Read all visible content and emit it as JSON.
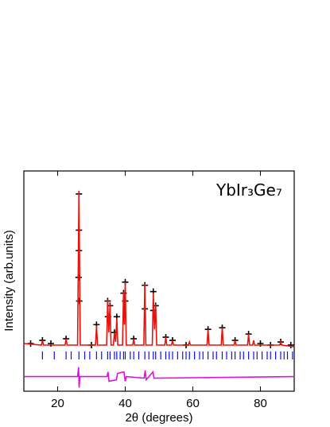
{
  "chart_data": {
    "type": "line",
    "annotation": "YbIr₃Ge₇",
    "x_label": "2θ (degrees)",
    "y_label": "Intensity (arb.units)",
    "xlim": [
      10,
      90
    ],
    "xticks": [
      20,
      40,
      60,
      80
    ],
    "ylim": [
      -0.273,
      1.126
    ],
    "series": [
      {
        "style": "marker",
        "color": "#000000",
        "x": [
          12,
          15.5,
          18,
          22.5,
          26.2,
          26.3,
          26.3,
          26.3,
          26.4,
          30,
          31.5,
          34.8,
          34.9,
          35.5,
          36.8,
          37.5,
          39.5,
          40.0,
          40.0,
          42.5,
          45.8,
          45.8,
          48.3,
          48.3,
          49.0,
          52,
          54,
          58,
          64.5,
          68.7,
          72.5,
          76.5,
          80,
          83,
          86,
          89
        ],
        "values": [
          0.03,
          0.05,
          0.03,
          0.06,
          0.45,
          0.98,
          0.75,
          0.62,
          0.3,
          0.02,
          0.15,
          0.3,
          0.2,
          0.27,
          0.1,
          0.2,
          0.35,
          0.42,
          0.3,
          0.06,
          0.4,
          0.25,
          0.36,
          0.24,
          0.27,
          0.07,
          0.05,
          0.02,
          0.12,
          0.13,
          0.05,
          0.09,
          0.03,
          0.02,
          0.04,
          0.02
        ]
      },
      {
        "style": "line",
        "color": "#e8120c",
        "x": [
          10,
          15.2,
          15.5,
          15.8,
          22.2,
          22.5,
          22.8,
          25.9,
          26.3,
          26.7,
          31.2,
          31.5,
          31.8,
          34.5,
          34.8,
          35.15,
          35.5,
          35.8,
          36.5,
          36.8,
          37.15,
          37.5,
          37.8,
          39.2,
          39.5,
          39.75,
          40.0,
          40.3,
          42.2,
          42.5,
          42.8,
          45.5,
          45.8,
          46.1,
          48.0,
          48.3,
          48.65,
          49.0,
          49.3,
          51.7,
          52,
          52.3,
          53.7,
          54,
          54.3,
          58.7,
          59,
          59.3,
          64.2,
          64.5,
          64.8,
          68.4,
          68.7,
          69.0,
          72.2,
          72.5,
          72.8,
          76.2,
          76.5,
          76.8,
          77.7,
          78,
          78.3,
          85.7,
          86,
          86.3,
          90
        ],
        "values": [
          0.03,
          0.02,
          0.05,
          0.02,
          0.02,
          0.06,
          0.02,
          0.02,
          1.0,
          0.02,
          0.02,
          0.14,
          0.02,
          0.02,
          0.31,
          0.1,
          0.28,
          0.02,
          0.02,
          0.1,
          0.04,
          0.19,
          0.02,
          0.02,
          0.36,
          0.15,
          0.42,
          0.02,
          0.02,
          0.06,
          0.02,
          0.02,
          0.41,
          0.02,
          0.02,
          0.35,
          0.12,
          0.28,
          0.02,
          0.02,
          0.07,
          0.02,
          0.02,
          0.05,
          0.02,
          0.02,
          0.04,
          0.02,
          0.02,
          0.12,
          0.02,
          0.02,
          0.13,
          0.02,
          0.02,
          0.05,
          0.02,
          0.02,
          0.09,
          0.02,
          0.02,
          0.05,
          0.02,
          0.02,
          0.04,
          0.02,
          0.01
        ]
      },
      {
        "style": "tick",
        "color": "#1010ee",
        "x": [
          15.5,
          19,
          22.5,
          24,
          26.3,
          28,
          29.5,
          31.5,
          33,
          34.8,
          35.5,
          36.8,
          37.5,
          38.5,
          39.5,
          40,
          41.5,
          42.5,
          44,
          45.8,
          47,
          48.3,
          49,
          50.5,
          52,
          53,
          54,
          55.5,
          57,
          58,
          59,
          60.5,
          62,
          63,
          64.5,
          66,
          67,
          68.7,
          70,
          71.5,
          72.5,
          74,
          75,
          76.5,
          78,
          79,
          80.5,
          82,
          83,
          84.5,
          86,
          87,
          88,
          89.5
        ]
      },
      {
        "style": "line",
        "color": "#e010e0",
        "x": [
          10,
          25.9,
          26.2,
          26.35,
          26.6,
          34.6,
          34.9,
          35.2,
          37.4,
          37.7,
          39.6,
          40.0,
          40.3,
          45.6,
          45.9,
          46.2,
          48.2,
          48.5,
          90
        ],
        "values": [
          -0.18,
          -0.18,
          -0.12,
          -0.25,
          -0.18,
          -0.18,
          -0.15,
          -0.21,
          -0.2,
          -0.16,
          -0.15,
          -0.21,
          -0.18,
          -0.19,
          -0.14,
          -0.2,
          -0.15,
          -0.19,
          -0.18
        ]
      }
    ]
  }
}
